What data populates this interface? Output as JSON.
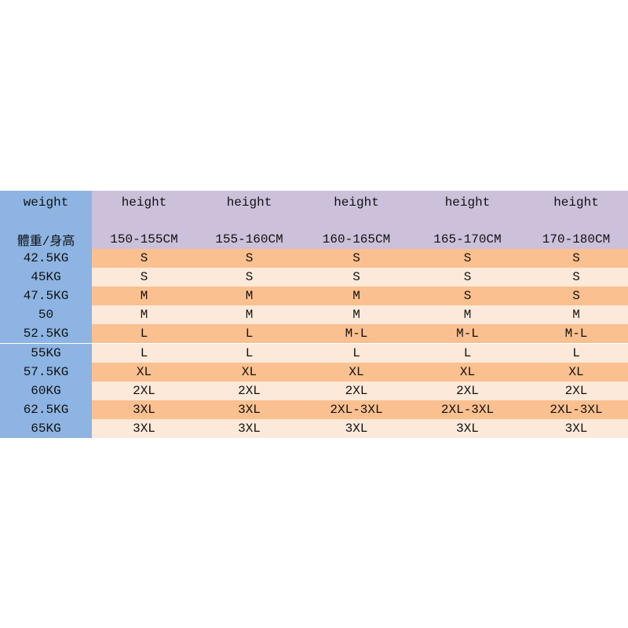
{
  "header": {
    "corner_top": "weight",
    "corner_bottom": "體重/身高",
    "heights": [
      "height",
      "height",
      "height",
      "height",
      "height"
    ],
    "ranges": [
      "150-155CM",
      "155-160CM",
      "160-165CM",
      "165-170CM",
      "170-180CM"
    ]
  },
  "table": {
    "rows": [
      [
        "42.5KG",
        "S",
        "S",
        "S",
        "S",
        "S"
      ],
      [
        "45KG",
        "S",
        "S",
        "S",
        "S",
        "S"
      ],
      [
        "47.5KG",
        "M",
        "M",
        "M",
        "S",
        "S"
      ],
      [
        "50",
        "M",
        "M",
        "M",
        "M",
        "M"
      ],
      [
        "52.5KG",
        "L",
        "L",
        "M-L",
        "M-L",
        "M-L"
      ],
      [
        "55KG",
        "L",
        "L",
        "L",
        "L",
        "L"
      ],
      [
        "57.5KG",
        "XL",
        "XL",
        "XL",
        "XL",
        "XL"
      ],
      [
        "60KG",
        "2XL",
        "2XL",
        "2XL",
        "2XL",
        "2XL"
      ],
      [
        "62.5KG",
        "3XL",
        "3XL",
        "2XL-3XL",
        "2XL-3XL",
        "2XL-3XL"
      ],
      [
        "65KG",
        "3XL",
        "3XL",
        "3XL",
        "3XL",
        "3XL"
      ]
    ]
  }
}
